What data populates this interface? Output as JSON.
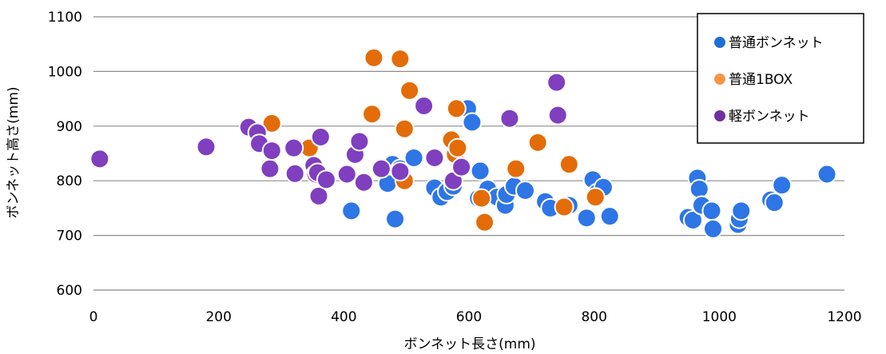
{
  "chart_data": {
    "type": "scatter",
    "title": "",
    "xlabel": "ボンネット長さ(mm)",
    "ylabel": "ボンネット高さ(mm)",
    "xlim": [
      0,
      1200
    ],
    "ylim": [
      600,
      1100
    ],
    "xticks": [
      "0",
      "200",
      "400",
      "600",
      "800",
      "1000",
      "1200"
    ],
    "yticks": [
      "600",
      "700",
      "800",
      "900",
      "1000",
      "1100"
    ],
    "grid": true,
    "legend_position": "top-right",
    "series": [
      {
        "name": "普通ボンネット",
        "color": "#2E75E6",
        "points": [
          [
            412,
            745
          ],
          [
            470,
            795
          ],
          [
            478,
            830
          ],
          [
            482,
            730
          ],
          [
            490,
            822
          ],
          [
            512,
            842
          ],
          [
            545,
            787
          ],
          [
            555,
            770
          ],
          [
            565,
            780
          ],
          [
            575,
            790
          ],
          [
            598,
            932
          ],
          [
            605,
            907
          ],
          [
            615,
            768
          ],
          [
            618,
            818
          ],
          [
            630,
            785
          ],
          [
            645,
            770
          ],
          [
            658,
            755
          ],
          [
            660,
            775
          ],
          [
            672,
            790
          ],
          [
            690,
            782
          ],
          [
            722,
            762
          ],
          [
            730,
            750
          ],
          [
            760,
            755
          ],
          [
            788,
            732
          ],
          [
            798,
            802
          ],
          [
            805,
            778
          ],
          [
            815,
            788
          ],
          [
            825,
            735
          ],
          [
            950,
            733
          ],
          [
            958,
            728
          ],
          [
            965,
            805
          ],
          [
            968,
            785
          ],
          [
            972,
            755
          ],
          [
            988,
            745
          ],
          [
            990,
            712
          ],
          [
            1030,
            720
          ],
          [
            1032,
            730
          ],
          [
            1035,
            745
          ],
          [
            1082,
            765
          ],
          [
            1088,
            760
          ],
          [
            1100,
            792
          ],
          [
            1172,
            812
          ]
        ]
      },
      {
        "name": "普通1BOX",
        "color": "#E36C09",
        "points": [
          [
            285,
            905
          ],
          [
            345,
            860
          ],
          [
            445,
            922
          ],
          [
            448,
            1025
          ],
          [
            490,
            1023
          ],
          [
            497,
            895
          ],
          [
            497,
            800
          ],
          [
            505,
            965
          ],
          [
            572,
            875
          ],
          [
            578,
            848
          ],
          [
            580,
            932
          ],
          [
            582,
            860
          ],
          [
            620,
            768
          ],
          [
            625,
            724
          ],
          [
            675,
            822
          ],
          [
            710,
            870
          ],
          [
            760,
            830
          ],
          [
            752,
            752
          ],
          [
            802,
            770
          ]
        ]
      },
      {
        "name": "軽ボンネット",
        "color": "#7F3FBF",
        "points": [
          [
            10,
            840
          ],
          [
            180,
            862
          ],
          [
            248,
            898
          ],
          [
            262,
            888
          ],
          [
            265,
            868
          ],
          [
            282,
            822
          ],
          [
            285,
            855
          ],
          [
            320,
            860
          ],
          [
            322,
            813
          ],
          [
            352,
            828
          ],
          [
            355,
            812
          ],
          [
            358,
            815
          ],
          [
            360,
            772
          ],
          [
            363,
            880
          ],
          [
            372,
            802
          ],
          [
            405,
            812
          ],
          [
            418,
            848
          ],
          [
            425,
            872
          ],
          [
            432,
            797
          ],
          [
            460,
            822
          ],
          [
            490,
            817
          ],
          [
            528,
            937
          ],
          [
            545,
            842
          ],
          [
            575,
            800
          ],
          [
            588,
            825
          ],
          [
            665,
            914
          ],
          [
            740,
            980
          ],
          [
            742,
            920
          ]
        ]
      }
    ]
  }
}
